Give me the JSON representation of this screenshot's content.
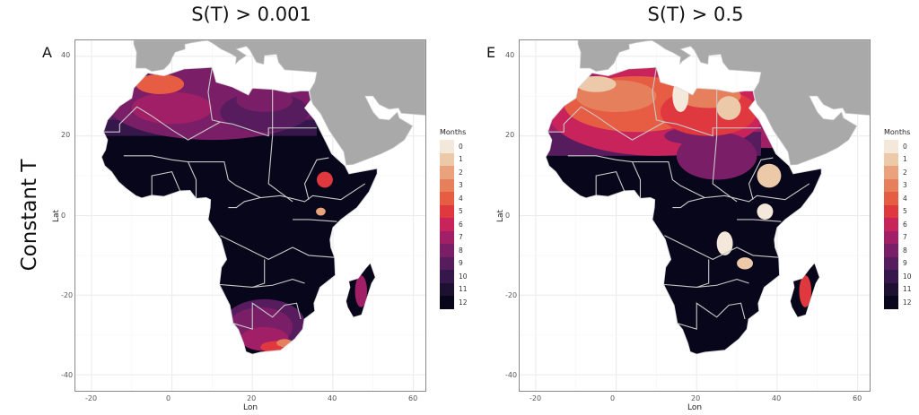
{
  "figure": {
    "row_label": "Constant T",
    "panels": [
      {
        "letter": "A",
        "title": "S(T) > 0.001",
        "variant": "low"
      },
      {
        "letter": "E",
        "title": "S(T) > 0.5",
        "variant": "high"
      }
    ],
    "x_axis": {
      "label": "Lon",
      "ticks": [
        -20,
        0,
        20,
        40,
        60
      ],
      "range": [
        -24,
        63
      ]
    },
    "y_axis": {
      "label": "Lat",
      "ticks": [
        40,
        20,
        0,
        -20,
        -40
      ],
      "range": [
        -44,
        44
      ]
    },
    "legend": {
      "title": "Months",
      "levels": [
        "0",
        "1",
        "2",
        "3",
        "4",
        "5",
        "6",
        "7",
        "8",
        "9",
        "10",
        "11",
        "12"
      ],
      "colors": [
        "#f3e8da",
        "#ecc9a9",
        "#e9a27c",
        "#e6805c",
        "#e65d44",
        "#e0383f",
        "#c8235a",
        "#a11f66",
        "#7b1e68",
        "#561c5e",
        "#36174b",
        "#1d1031",
        "#07061a"
      ]
    },
    "land_other_color": "#a9a9a9",
    "border_color": "#c8c8c8"
  }
}
